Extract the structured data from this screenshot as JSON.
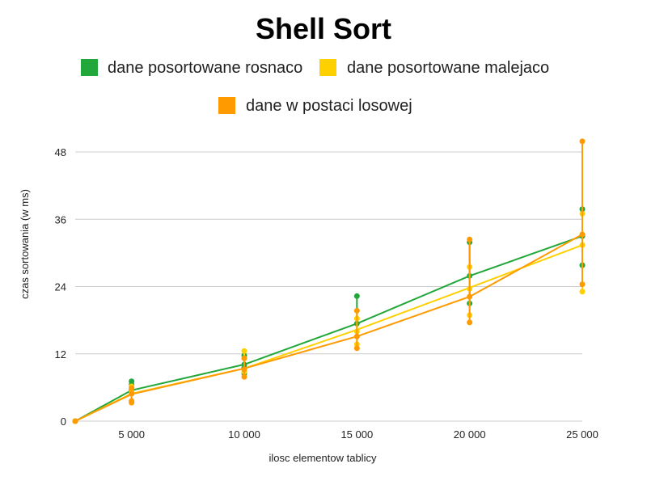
{
  "chart_data": {
    "type": "line",
    "title": "Shell Sort",
    "xlabel": "ilosc elementow tablicy",
    "ylabel": "czas sortowania (w ms)",
    "x": [
      2500,
      5000,
      10000,
      15000,
      20000,
      25000
    ],
    "xlim": [
      2500,
      25000
    ],
    "ylim": [
      0,
      48
    ],
    "x_ticks": [
      5000,
      10000,
      15000,
      20000,
      25000
    ],
    "x_tick_labels": [
      "5 000",
      "10 000",
      "15 000",
      "20 000",
      "25 000"
    ],
    "y_ticks": [
      0,
      12,
      24,
      36,
      48
    ],
    "grid": "horizontal",
    "legend": "top",
    "series": [
      {
        "name": "dane posortowane rosnaco",
        "color": "#22a73a",
        "values": [
          0,
          5.5,
          10.1,
          17.4,
          25.9,
          33.0
        ],
        "intervals": [
          [
            0
          ],
          [
            7.1,
            6.5,
            5.5
          ],
          [
            11.7,
            10.1,
            9.5,
            8.5
          ],
          [
            22.3,
            17.4
          ],
          [
            31.9,
            25.9,
            21.0
          ],
          [
            37.8,
            33.0,
            27.8
          ]
        ]
      },
      {
        "name": "dane posortowane malejaco",
        "color": "#ffd000",
        "values": [
          0,
          4.9,
          9.4,
          16.3,
          23.8,
          31.4
        ],
        "intervals": [
          [
            0
          ],
          [
            6.2,
            5.2,
            4.9
          ],
          [
            12.5,
            11.2,
            8.8
          ],
          [
            18.3,
            16.0,
            13.7
          ],
          [
            27.5,
            23.6,
            18.9
          ],
          [
            37.0,
            31.4,
            23.1
          ]
        ]
      },
      {
        "name": "dane w postaci losowej",
        "color": "#ff9a00",
        "values": [
          0,
          4.8,
          9.4,
          15.1,
          22.2,
          33.3
        ],
        "intervals": [
          [
            0
          ],
          [
            5.9,
            4.9,
            3.6,
            3.3
          ],
          [
            11.2,
            9.2,
            7.9
          ],
          [
            19.7,
            15.1,
            13.0
          ],
          [
            32.4,
            22.2,
            17.6
          ],
          [
            49.9,
            33.3,
            24.4
          ]
        ]
      }
    ]
  }
}
